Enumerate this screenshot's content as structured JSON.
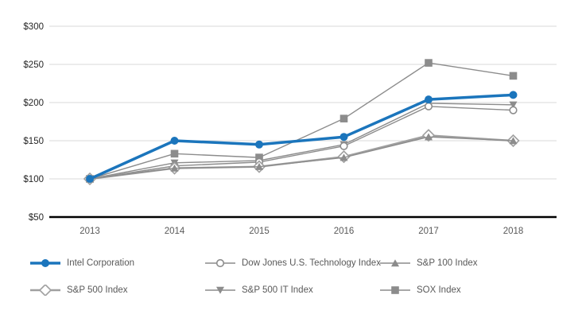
{
  "chart_data": {
    "type": "line",
    "title": "",
    "xlabel": "",
    "ylabel": "",
    "x_labels": [
      "2013",
      "2014",
      "2015",
      "2016",
      "2017",
      "2018"
    ],
    "y_ticks": [
      {
        "label": "$300",
        "value": 300
      },
      {
        "label": "$250",
        "value": 250
      },
      {
        "label": "$200",
        "value": 200
      },
      {
        "label": "$150",
        "value": 150
      },
      {
        "label": "$100",
        "value": 100
      },
      {
        "label": "$50",
        "value": 50
      }
    ],
    "ylim": [
      50,
      300
    ],
    "grid": true,
    "legend_position": "bottom",
    "series": [
      {
        "name": "Intel Corporation",
        "marker": "circle-filled",
        "color": "#1b75bc",
        "line_width": 3.5,
        "values": [
          100,
          150,
          145,
          155,
          204,
          210
        ]
      },
      {
        "name": "Dow Jones U.S. Technology Index",
        "marker": "circle-open",
        "color": "#8c8c8c",
        "line_width": 1.4,
        "values": [
          100,
          117,
          122,
          143,
          195,
          190
        ]
      },
      {
        "name": "S&P 100 Index",
        "marker": "triangle-up-filled",
        "color": "#8c8c8c",
        "line_width": 1.4,
        "values": [
          100,
          114,
          116,
          128,
          155,
          150
        ]
      },
      {
        "name": "S&P 500 Index",
        "marker": "diamond-open",
        "color": "#a0a0a0",
        "line_width": 2.4,
        "values": [
          100,
          114,
          116,
          129,
          157,
          150
        ]
      },
      {
        "name": "S&P 500 IT Index",
        "marker": "triangle-down-filled",
        "color": "#8c8c8c",
        "line_width": 1.4,
        "values": [
          100,
          121,
          124,
          145,
          199,
          197
        ]
      },
      {
        "name": "SOX Index",
        "marker": "square-filled",
        "color": "#8c8c8c",
        "line_width": 1.4,
        "values": [
          100,
          133,
          128,
          179,
          252,
          235
        ]
      }
    ],
    "draw_order": [
      5,
      4,
      1,
      3,
      2,
      0
    ],
    "colors": {
      "gridline": "#d9d9d9",
      "axis_baseline": "#000000",
      "axis_label": "#262626",
      "x_label": "#595959",
      "legend_text": "#595959",
      "background": "#ffffff",
      "accent_blue": "#1b75bc"
    }
  }
}
